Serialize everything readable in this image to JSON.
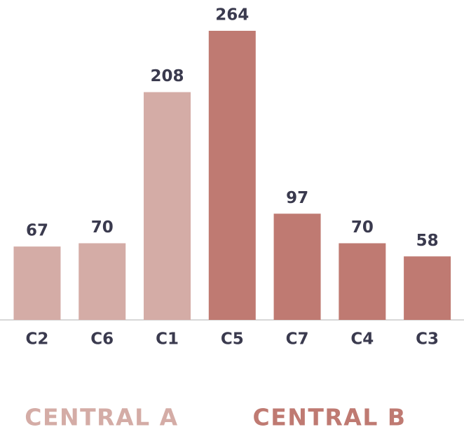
{
  "chart_data": {
    "type": "bar",
    "categories": [
      "C2",
      "C6",
      "C1",
      "C5",
      "C7",
      "C4",
      "C3"
    ],
    "series": [
      {
        "name": "CENTRAL A",
        "color": "#d4aca6",
        "values": [
          67,
          70,
          208,
          null,
          null,
          null,
          null
        ]
      },
      {
        "name": "CENTRAL B",
        "color": "#bf7a72",
        "values": [
          null,
          null,
          null,
          264,
          97,
          70,
          58
        ]
      }
    ],
    "ylim": [
      0,
      264
    ]
  }
}
